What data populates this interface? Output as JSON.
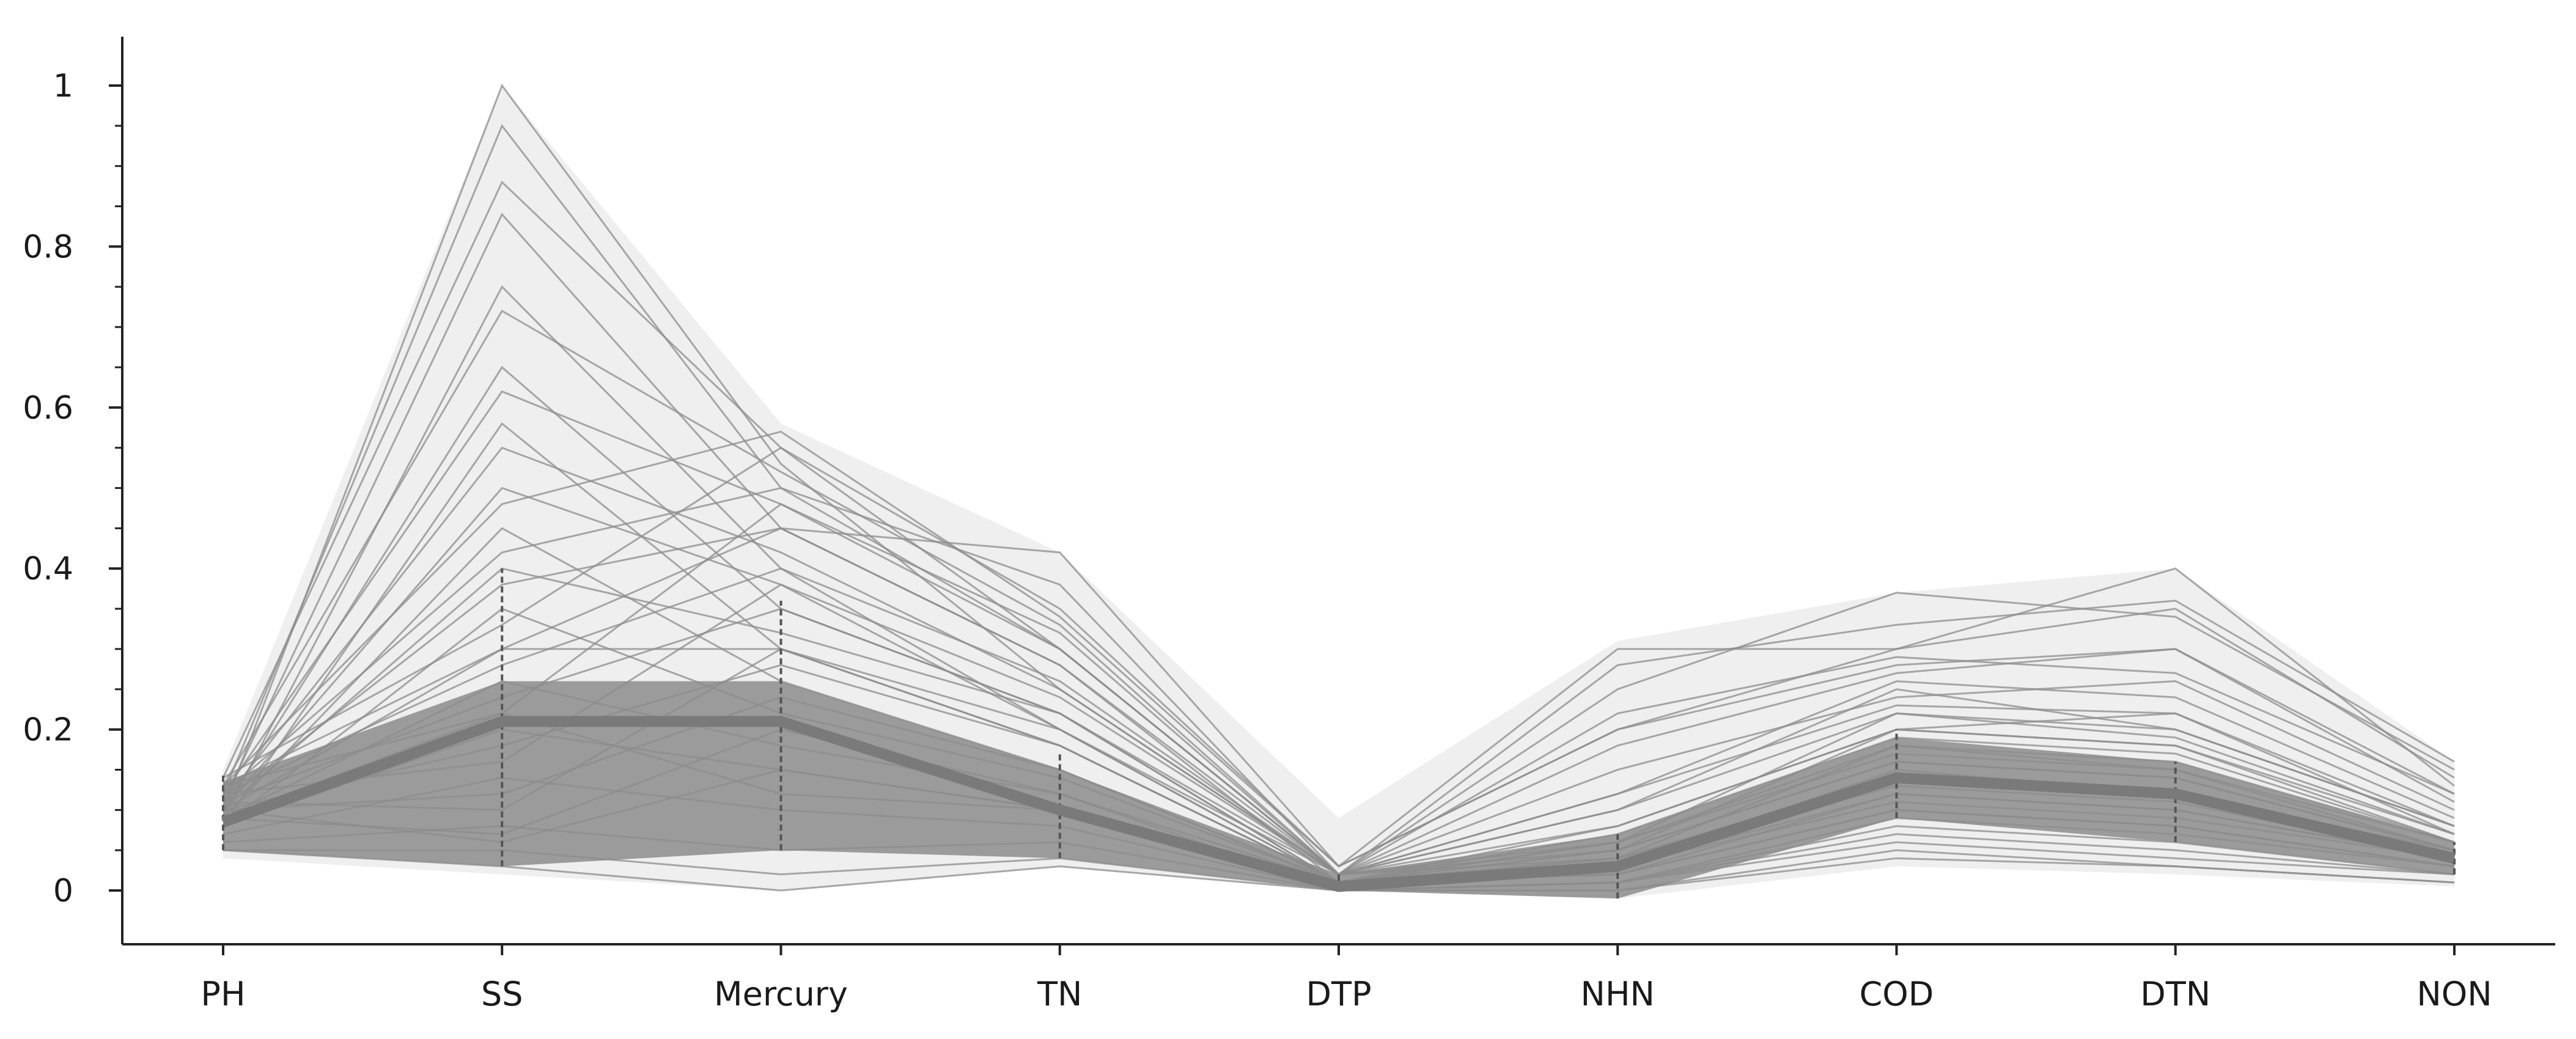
{
  "chart_data": {
    "type": "line",
    "subtype": "parallel-coordinates",
    "title": "",
    "xlabel": "",
    "ylabel": "",
    "ylim": [
      0,
      1
    ],
    "yticks": [
      0,
      0.2,
      0.4,
      0.6,
      0.8,
      1
    ],
    "ytick_labels": [
      "0",
      "0.2",
      "0.4",
      "0.6",
      "0.8",
      "1"
    ],
    "categories": [
      "PH",
      "SS",
      "Mercury",
      "TN",
      "DTP",
      "NHN",
      "COD",
      "DTN",
      "NON"
    ],
    "grid": false,
    "legend": "none",
    "colors": {
      "lines": "#8c8c8c",
      "envelope": "#efefef",
      "mean_line": "#7a7a7a",
      "axis": "#222222"
    },
    "envelope_min": [
      0.04,
      0.02,
      0.0,
      0.03,
      0.0,
      -0.01,
      0.03,
      0.02,
      0.005
    ],
    "envelope_max": [
      0.15,
      1.0,
      0.58,
      0.42,
      0.09,
      0.31,
      0.37,
      0.4,
      0.16
    ],
    "mean": [
      0.085,
      0.21,
      0.21,
      0.1,
      0.005,
      0.03,
      0.14,
      0.12,
      0.04
    ],
    "spread_low": [
      0.05,
      0.03,
      0.05,
      0.04,
      0.0,
      -0.01,
      0.09,
      0.06,
      0.02
    ],
    "spread_high": [
      0.145,
      0.4,
      0.36,
      0.17,
      0.02,
      0.07,
      0.2,
      0.16,
      0.06
    ],
    "series": [
      {
        "values": [
          0.1,
          1.0,
          0.53,
          0.25,
          0.02,
          0.05,
          0.2,
          0.18,
          0.06
        ]
      },
      {
        "values": [
          0.12,
          0.95,
          0.5,
          0.3,
          0.02,
          0.1,
          0.25,
          0.2,
          0.08
        ]
      },
      {
        "values": [
          0.14,
          0.88,
          0.55,
          0.35,
          0.03,
          0.2,
          0.28,
          0.3,
          0.12
        ]
      },
      {
        "values": [
          0.11,
          0.84,
          0.45,
          0.28,
          0.01,
          0.06,
          0.22,
          0.19,
          0.07
        ]
      },
      {
        "values": [
          0.09,
          0.75,
          0.4,
          0.2,
          0.02,
          0.04,
          0.18,
          0.15,
          0.05
        ]
      },
      {
        "values": [
          0.13,
          0.72,
          0.52,
          0.33,
          0.02,
          0.12,
          0.26,
          0.24,
          0.09
        ]
      },
      {
        "values": [
          0.1,
          0.65,
          0.35,
          0.22,
          0.01,
          0.03,
          0.15,
          0.12,
          0.05
        ]
      },
      {
        "values": [
          0.12,
          0.62,
          0.48,
          0.3,
          0.02,
          0.08,
          0.2,
          0.22,
          0.07
        ]
      },
      {
        "values": [
          0.08,
          0.58,
          0.3,
          0.18,
          0.01,
          0.02,
          0.12,
          0.1,
          0.04
        ]
      },
      {
        "values": [
          0.11,
          0.55,
          0.42,
          0.25,
          0.02,
          0.15,
          0.24,
          0.26,
          0.1
        ]
      },
      {
        "values": [
          0.1,
          0.5,
          0.38,
          0.2,
          0.01,
          0.05,
          0.16,
          0.14,
          0.05
        ]
      },
      {
        "values": [
          0.13,
          0.48,
          0.57,
          0.34,
          0.03,
          0.3,
          0.3,
          0.35,
          0.14
        ]
      },
      {
        "values": [
          0.09,
          0.45,
          0.26,
          0.15,
          0.01,
          0.03,
          0.12,
          0.1,
          0.04
        ]
      },
      {
        "values": [
          0.12,
          0.42,
          0.5,
          0.38,
          0.02,
          0.25,
          0.37,
          0.34,
          0.15
        ]
      },
      {
        "values": [
          0.1,
          0.4,
          0.32,
          0.22,
          0.02,
          0.06,
          0.18,
          0.16,
          0.06
        ]
      },
      {
        "values": [
          0.11,
          0.38,
          0.45,
          0.42,
          0.03,
          0.2,
          0.3,
          0.4,
          0.13
        ]
      },
      {
        "values": [
          0.08,
          0.35,
          0.22,
          0.14,
          0.01,
          0.02,
          0.1,
          0.08,
          0.03
        ]
      },
      {
        "values": [
          0.14,
          0.33,
          0.55,
          0.3,
          0.02,
          0.28,
          0.33,
          0.36,
          0.16
        ]
      },
      {
        "values": [
          0.1,
          0.3,
          0.3,
          0.18,
          0.01,
          0.04,
          0.14,
          0.12,
          0.04
        ]
      },
      {
        "values": [
          0.12,
          0.28,
          0.4,
          0.26,
          0.02,
          0.1,
          0.22,
          0.2,
          0.08
        ]
      },
      {
        "values": [
          0.09,
          0.26,
          0.18,
          0.12,
          0.0,
          0.01,
          0.08,
          0.06,
          0.02
        ]
      },
      {
        "values": [
          0.11,
          0.24,
          0.35,
          0.22,
          0.01,
          0.07,
          0.19,
          0.17,
          0.06
        ]
      },
      {
        "values": [
          0.13,
          0.22,
          0.48,
          0.32,
          0.02,
          0.18,
          0.27,
          0.3,
          0.11
        ]
      },
      {
        "values": [
          0.08,
          0.2,
          0.15,
          0.1,
          0.0,
          0.01,
          0.09,
          0.07,
          0.03
        ]
      },
      {
        "values": [
          0.1,
          0.18,
          0.28,
          0.18,
          0.01,
          0.05,
          0.16,
          0.14,
          0.05
        ]
      },
      {
        "values": [
          0.12,
          0.16,
          0.38,
          0.24,
          0.02,
          0.12,
          0.23,
          0.22,
          0.08
        ]
      },
      {
        "values": [
          0.07,
          0.14,
          0.1,
          0.08,
          0.0,
          0.01,
          0.07,
          0.05,
          0.02
        ]
      },
      {
        "values": [
          0.1,
          0.12,
          0.24,
          0.15,
          0.01,
          0.04,
          0.13,
          0.11,
          0.04
        ]
      },
      {
        "values": [
          0.11,
          0.1,
          0.3,
          0.2,
          0.01,
          0.08,
          0.2,
          0.18,
          0.07
        ]
      },
      {
        "values": [
          0.06,
          0.08,
          0.05,
          0.06,
          0.0,
          0.01,
          0.06,
          0.04,
          0.02
        ]
      },
      {
        "values": [
          0.09,
          0.07,
          0.2,
          0.12,
          0.01,
          0.03,
          0.11,
          0.09,
          0.04
        ]
      },
      {
        "values": [
          0.05,
          0.05,
          0.02,
          0.04,
          0.0,
          0.0,
          0.05,
          0.03,
          0.01
        ]
      },
      {
        "values": [
          0.1,
          0.06,
          0.15,
          0.1,
          0.01,
          0.06,
          0.17,
          0.15,
          0.06
        ]
      },
      {
        "values": [
          0.05,
          0.03,
          0.0,
          0.03,
          0.0,
          0.0,
          0.04,
          0.03,
          0.01
        ]
      },
      {
        "values": [
          0.13,
          0.3,
          0.45,
          0.28,
          0.02,
          0.22,
          0.29,
          0.27,
          0.12
        ]
      },
      {
        "values": [
          0.09,
          0.22,
          0.12,
          0.1,
          0.01,
          0.02,
          0.1,
          0.08,
          0.03
        ]
      }
    ]
  }
}
